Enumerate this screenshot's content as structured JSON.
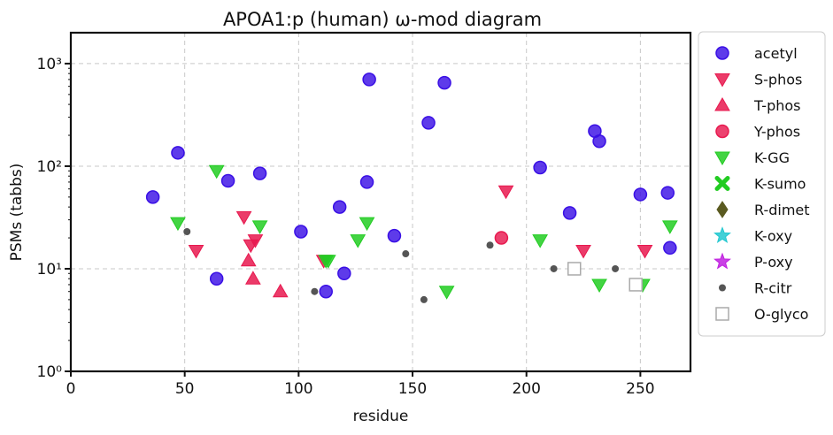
{
  "chart_data": {
    "type": "scatter",
    "title": "APOA1:p (human) ω-mod diagram",
    "xlabel": "residue",
    "ylabel": "PSMs (tabbs)",
    "xlim": [
      0,
      272
    ],
    "ylim": [
      1,
      2000
    ],
    "yscale": "log",
    "xticks": [
      0,
      50,
      100,
      150,
      200,
      250
    ],
    "xtick_labels": [
      "0",
      "50",
      "100",
      "150",
      "200",
      "250"
    ],
    "yticks": [
      1,
      10,
      100,
      1000
    ],
    "ytick_labels": [
      "10⁰",
      "10¹",
      "10²",
      "10³"
    ],
    "grid": true,
    "legend_position": "right",
    "series": [
      {
        "name": "acetyl",
        "marker": "circle",
        "color": "#3a10e5",
        "x": [
          36,
          47,
          64,
          69,
          83,
          101,
          112,
          118,
          120,
          130,
          131,
          142,
          157,
          164,
          206,
          219,
          230,
          232,
          250,
          262,
          263
        ],
        "y": [
          50,
          135,
          8,
          72,
          85,
          23,
          6,
          40,
          9,
          70,
          700,
          21,
          265,
          650,
          97,
          35,
          220,
          175,
          53,
          55,
          16
        ]
      },
      {
        "name": "S-phos",
        "marker": "triangle-down",
        "color": "#e8194f",
        "x": [
          55,
          76,
          79,
          81,
          111,
          191,
          225,
          252
        ],
        "y": [
          15,
          32,
          17,
          19,
          12,
          57,
          15,
          15
        ]
      },
      {
        "name": "T-phos",
        "marker": "triangle-up",
        "color": "#e8194f",
        "x": [
          78,
          80,
          92
        ],
        "y": [
          12,
          8,
          6
        ]
      },
      {
        "name": "Y-phos",
        "marker": "circle",
        "color": "#e8194f",
        "x": [
          189
        ],
        "y": [
          20
        ]
      },
      {
        "name": "K-GG",
        "marker": "triangle-down",
        "color": "#22cc22",
        "x": [
          47,
          64,
          83,
          112,
          113,
          126,
          130,
          165,
          206,
          232,
          251,
          263
        ],
        "y": [
          28,
          90,
          26,
          12,
          12,
          19,
          28,
          6,
          19,
          7,
          7,
          26
        ]
      },
      {
        "name": "K-sumo",
        "marker": "x",
        "color": "#22cc22",
        "x": [],
        "y": []
      },
      {
        "name": "R-dimet",
        "marker": "diamond",
        "color": "#5a5a20",
        "x": [],
        "y": []
      },
      {
        "name": "K-oxy",
        "marker": "star",
        "color": "#22c8d0",
        "x": [],
        "y": []
      },
      {
        "name": "P-oxy",
        "marker": "star",
        "color": "#c020e0",
        "x": [],
        "y": []
      },
      {
        "name": "R-citr",
        "marker": "dot",
        "color": "#555555",
        "x": [
          51,
          107,
          147,
          155,
          184,
          212,
          239
        ],
        "y": [
          23,
          6,
          14,
          5,
          17,
          10,
          10
        ]
      },
      {
        "name": "O-glyco",
        "marker": "square-open",
        "color": "#aaaaaa",
        "x": [
          221,
          248
        ],
        "y": [
          10,
          7
        ]
      }
    ]
  }
}
